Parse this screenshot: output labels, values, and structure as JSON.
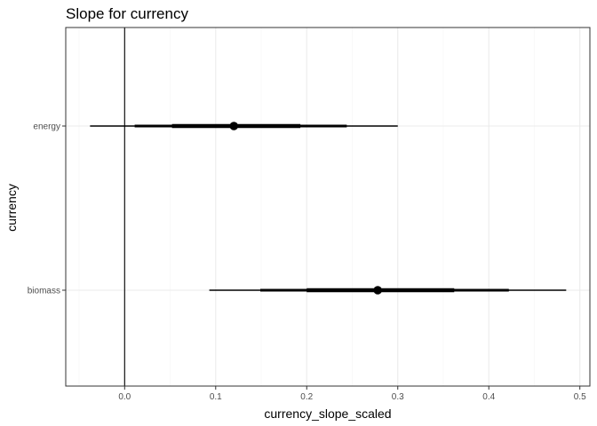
{
  "chart_data": {
    "type": "pointrange",
    "title": "Slope for currency",
    "xlabel": "currency_slope_scaled",
    "ylabel": "currency",
    "xlim": [
      -0.065,
      0.5
    ],
    "x_ticks": [
      "0.0",
      "0.1",
      "0.2",
      "0.3",
      "0.4",
      "0.5"
    ],
    "x_tick_values": [
      0.0,
      0.1,
      0.2,
      0.3,
      0.4,
      0.5
    ],
    "reference_line_x": 0,
    "grid": true,
    "categories": [
      "energy",
      "biomass"
    ],
    "series": [
      {
        "category": "energy",
        "point": 0.12,
        "interval_thick": [
          0.052,
          0.193
        ],
        "interval_mid": [
          0.011,
          0.244
        ],
        "interval_thin": [
          -0.038,
          0.3
        ]
      },
      {
        "category": "biomass",
        "point": 0.278,
        "interval_thick": [
          0.2,
          0.362
        ],
        "interval_mid": [
          0.149,
          0.422
        ],
        "interval_thin": [
          0.093,
          0.485
        ]
      }
    ],
    "colors": {
      "panel_border": "#333333",
      "grid_major": "#ebebeb",
      "grid_minor": "#f5f5f5",
      "mark": "#000000",
      "tick_text": "#4d4d4d"
    }
  }
}
